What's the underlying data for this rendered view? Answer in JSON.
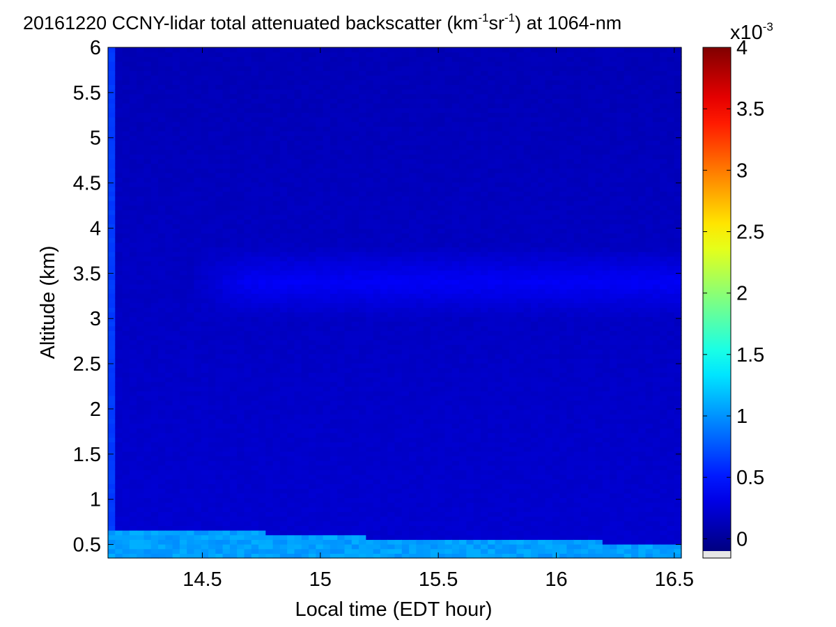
{
  "chart_data": {
    "type": "heatmap",
    "title": {
      "main": "20161220 CCNY-lidar total attenuated backscatter (km",
      "sup1": "-1",
      "mid": "sr",
      "sup2": "-1",
      "end": ") at 1064-nm"
    },
    "xlabel": "Local time (EDT hour)",
    "ylabel": "Altitude (km)",
    "xlim": [
      14.1,
      16.53
    ],
    "ylim": [
      0.35,
      6.0
    ],
    "x_ticks": [
      14.5,
      15,
      15.5,
      16,
      16.5
    ],
    "x_tick_labels": [
      "14.5",
      "15",
      "15.5",
      "16",
      "16.5"
    ],
    "y_ticks": [
      0.5,
      1,
      1.5,
      2,
      2.5,
      3,
      3.5,
      4,
      4.5,
      5,
      5.5,
      6
    ],
    "y_tick_labels": [
      "0.5",
      "1",
      "1.5",
      "2",
      "2.5",
      "3",
      "3.5",
      "4",
      "4.5",
      "5",
      "5.5",
      "6"
    ],
    "colorbar": {
      "colormap": "jet",
      "clim": [
        -0.1,
        4.0
      ],
      "ticks": [
        0,
        0.5,
        1,
        1.5,
        2,
        2.5,
        3,
        3.5,
        4
      ],
      "tick_labels": [
        "0",
        "0.5",
        "1",
        "1.5",
        "2",
        "2.5",
        "3",
        "3.5",
        "4"
      ],
      "multiplier": {
        "base": "x10",
        "exponent": "-3"
      },
      "below_range_color": "#e6e6e6"
    },
    "field_description_values": {
      "boundary_layer_top_km": [
        [
          14.1,
          0.68
        ],
        [
          14.3,
          0.66
        ],
        [
          14.6,
          0.66
        ],
        [
          14.9,
          0.61
        ],
        [
          15.2,
          0.58
        ],
        [
          15.5,
          0.55
        ],
        [
          15.8,
          0.56
        ],
        [
          16.1,
          0.55
        ],
        [
          16.3,
          0.51
        ],
        [
          16.53,
          0.5
        ]
      ],
      "boundary_layer_value": 1.05,
      "elevated_layer": {
        "x_range": [
          14.45,
          16.53
        ],
        "y_range": [
          3.0,
          3.8
        ],
        "value": 0.38
      },
      "free_troposphere_value": 0.22,
      "upper_value": 0.12
    }
  }
}
